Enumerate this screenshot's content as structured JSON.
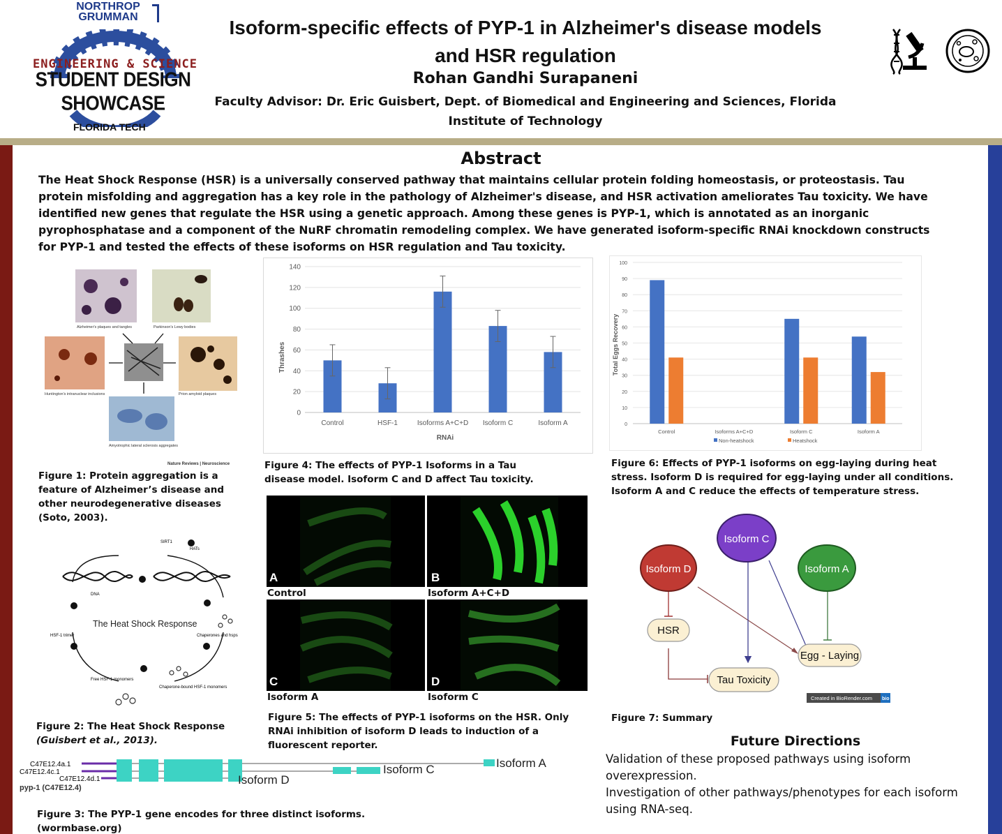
{
  "header": {
    "logo_company": "NORTHROP GRUMMAN",
    "logo_line1": "ENGINEERING & SCIENCE",
    "logo_line2": "STUDENT DESIGN SHOWCASE",
    "logo_line3": "FLORIDA TECH",
    "title": "Isoform-specific effects of PYP-1 in Alzheimer's disease models and HSR regulation",
    "author": "Rohan Gandhi Surapaneni",
    "advisor": "Faculty Advisor: Dr. Eric Guisbert, Dept. of Biomedical and Engineering and Sciences, Florida Institute of Technology"
  },
  "abstract": {
    "heading": "Abstract",
    "body": "The Heat Shock Response (HSR) is a universally conserved pathway that maintains cellular protein folding homeostasis, or proteostasis.  Tau protein misfolding and aggregation has a key role in the pathology of Alzheimer's disease, and HSR activation ameliorates Tau toxicity.  We have identified new genes that regulate the HSR using a genetic approach.  Among these genes is PYP-1, which is annotated as an inorganic pyrophosphatase and a component of the NuRF chromatin remodeling complex.  We have generated isoform-specific RNAi knockdown constructs for PYP-1 and tested the effects of these isoforms on HSR regulation and Tau toxicity."
  },
  "figure1": {
    "labels": [
      "Alzheimer's plaques and tangles",
      "Parkinson's Lewy bodies",
      "Huntington's intranuclear inclusions",
      "Prion amyloid plaques",
      "Amyotrophic lateral sclerosis aggregates"
    ],
    "source": "Nature Reviews | Neuroscience",
    "caption": "Figure 1: Protein aggregation is a feature of Alzheimer’s disease and other neurodegenerative diseases (Soto, 2003)."
  },
  "figure2": {
    "center": "The Heat Shock Response",
    "labels": [
      "SIRT1",
      "HATs",
      "DNA",
      "HSF-1 trimer",
      "Chaperones and hsps",
      "Free HSF-1 monomers",
      "Chaperone-bound HSF-1 monomers"
    ],
    "caption_main": "Figure 2: The Heat Shock Response",
    "caption_cite": "(Guisbert et al., 2013)."
  },
  "figure3": {
    "transcripts": [
      "C47E12.4a.1",
      "C47E12.4c.1",
      "C47E12.4d.1"
    ],
    "gene": "pyp-1 (C47E12.4)",
    "isoform_labels": [
      "Isoform A",
      "Isoform C",
      "Isoform D"
    ],
    "caption": "Figure 3: The PYP-1 gene encodes for three distinct isoforms. (wormbase.org)"
  },
  "figure4": {
    "caption": "Figure 4: The effects of PYP-1 Isoforms in a Tau disease model.  Isoform C and D affect Tau toxicity."
  },
  "figure5": {
    "panels": [
      {
        "letter": "A",
        "label": "Control"
      },
      {
        "letter": "B",
        "label": "Isoform A+C+D"
      },
      {
        "letter": "C",
        "label": "Isoform A"
      },
      {
        "letter": "D",
        "label": "Isoform C"
      }
    ],
    "caption": "Figure 5: The effects of PYP-1 isoforms on the HSR.  Only RNAi inhibition of isoform D leads to induction of a fluorescent reporter."
  },
  "figure6": {
    "caption": "Figure 6: Effects of PYP-1 isoforms on egg-laying during heat stress.  Isoform D is required for egg-laying under all conditions.  Isoform A  and C reduce the effects of temperature stress."
  },
  "figure7": {
    "nodes": [
      "Isoform C",
      "Isoform D",
      "Isoform A",
      "HSR",
      "Egg - Laying",
      "Tau Toxicity"
    ],
    "badge": "Created in BioRender.com",
    "badge_suffix": "bio",
    "caption": "Figure 7: Summary"
  },
  "future": {
    "heading": "Future Directions",
    "line1": "Validation of these proposed pathways using isoform overexpression.",
    "line2": "Investigation of other pathways/phenotypes for each isoform using RNA-seq."
  },
  "chart_data": [
    {
      "type": "bar",
      "title": "",
      "xlabel": "RNAi",
      "ylabel": "Thrashes",
      "ylim": [
        0,
        140
      ],
      "yticks": [
        0,
        20,
        40,
        60,
        80,
        100,
        120,
        140
      ],
      "categories": [
        "Control",
        "HSF-1",
        "Isoforms A+C+D",
        "Isoform C",
        "Isoform A"
      ],
      "values": [
        50,
        28,
        116,
        83,
        58
      ],
      "errors": [
        15,
        15,
        15,
        15,
        15
      ],
      "grid": true,
      "color": "#4472c4"
    },
    {
      "type": "bar",
      "title": "",
      "xlabel": "",
      "ylabel": "Total Eggs Recovery",
      "ylim": [
        0,
        100
      ],
      "yticks": [
        0,
        10,
        20,
        30,
        40,
        50,
        60,
        70,
        80,
        90,
        100
      ],
      "categories": [
        "Control",
        "Isoforms A+C+D",
        "Isoform C",
        "Isoform A"
      ],
      "series": [
        {
          "name": "Non-heatshock",
          "values": [
            89,
            0,
            65,
            54
          ],
          "color": "#4472c4"
        },
        {
          "name": "Heatshock",
          "values": [
            41,
            0,
            41,
            32
          ],
          "color": "#ed7d31"
        }
      ],
      "legend": "bottom",
      "grid": true
    }
  ]
}
